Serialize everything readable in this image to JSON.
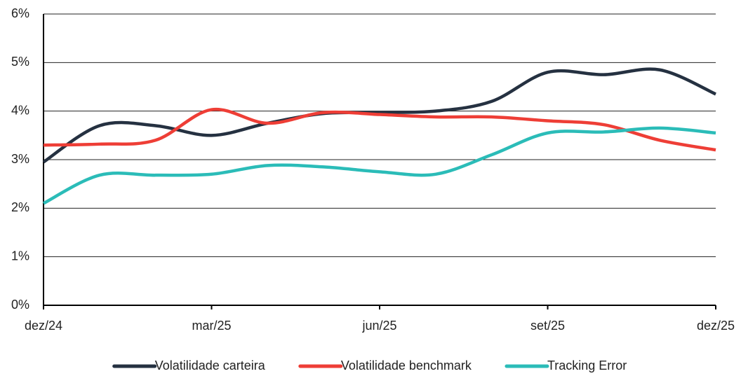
{
  "chart_data": {
    "type": "line",
    "categories": [
      "dez/24",
      null,
      null,
      "mar/25",
      null,
      null,
      "jun/25",
      null,
      null,
      "set/25",
      null,
      null,
      "dez/25"
    ],
    "series": [
      {
        "name": "Volatilidade carteira",
        "color": "#253141",
        "values": [
          2.95,
          3.7,
          3.7,
          3.5,
          3.75,
          3.95,
          3.97,
          4.0,
          4.2,
          4.8,
          4.75,
          4.85,
          4.35
        ]
      },
      {
        "name": "Volatilidade benchmark",
        "color": "#ee3e36",
        "values": [
          3.3,
          3.32,
          3.4,
          4.03,
          3.75,
          3.97,
          3.93,
          3.88,
          3.88,
          3.8,
          3.72,
          3.4,
          3.2
        ]
      },
      {
        "name": "Tracking Error",
        "color": "#2bbcb8",
        "values": [
          2.1,
          2.68,
          2.68,
          2.7,
          2.88,
          2.85,
          2.75,
          2.7,
          3.1,
          3.55,
          3.57,
          3.65,
          3.55
        ]
      }
    ],
    "ylim": [
      0,
      6
    ],
    "yticks": [
      {
        "value": 0,
        "label": "0%"
      },
      {
        "value": 1,
        "label": "1%"
      },
      {
        "value": 2,
        "label": "2%"
      },
      {
        "value": 3,
        "label": "3%"
      },
      {
        "value": 4,
        "label": "4%"
      },
      {
        "value": 5,
        "label": "5%"
      },
      {
        "value": 6,
        "label": "6%"
      }
    ],
    "grid": true,
    "legend": "bottom"
  }
}
